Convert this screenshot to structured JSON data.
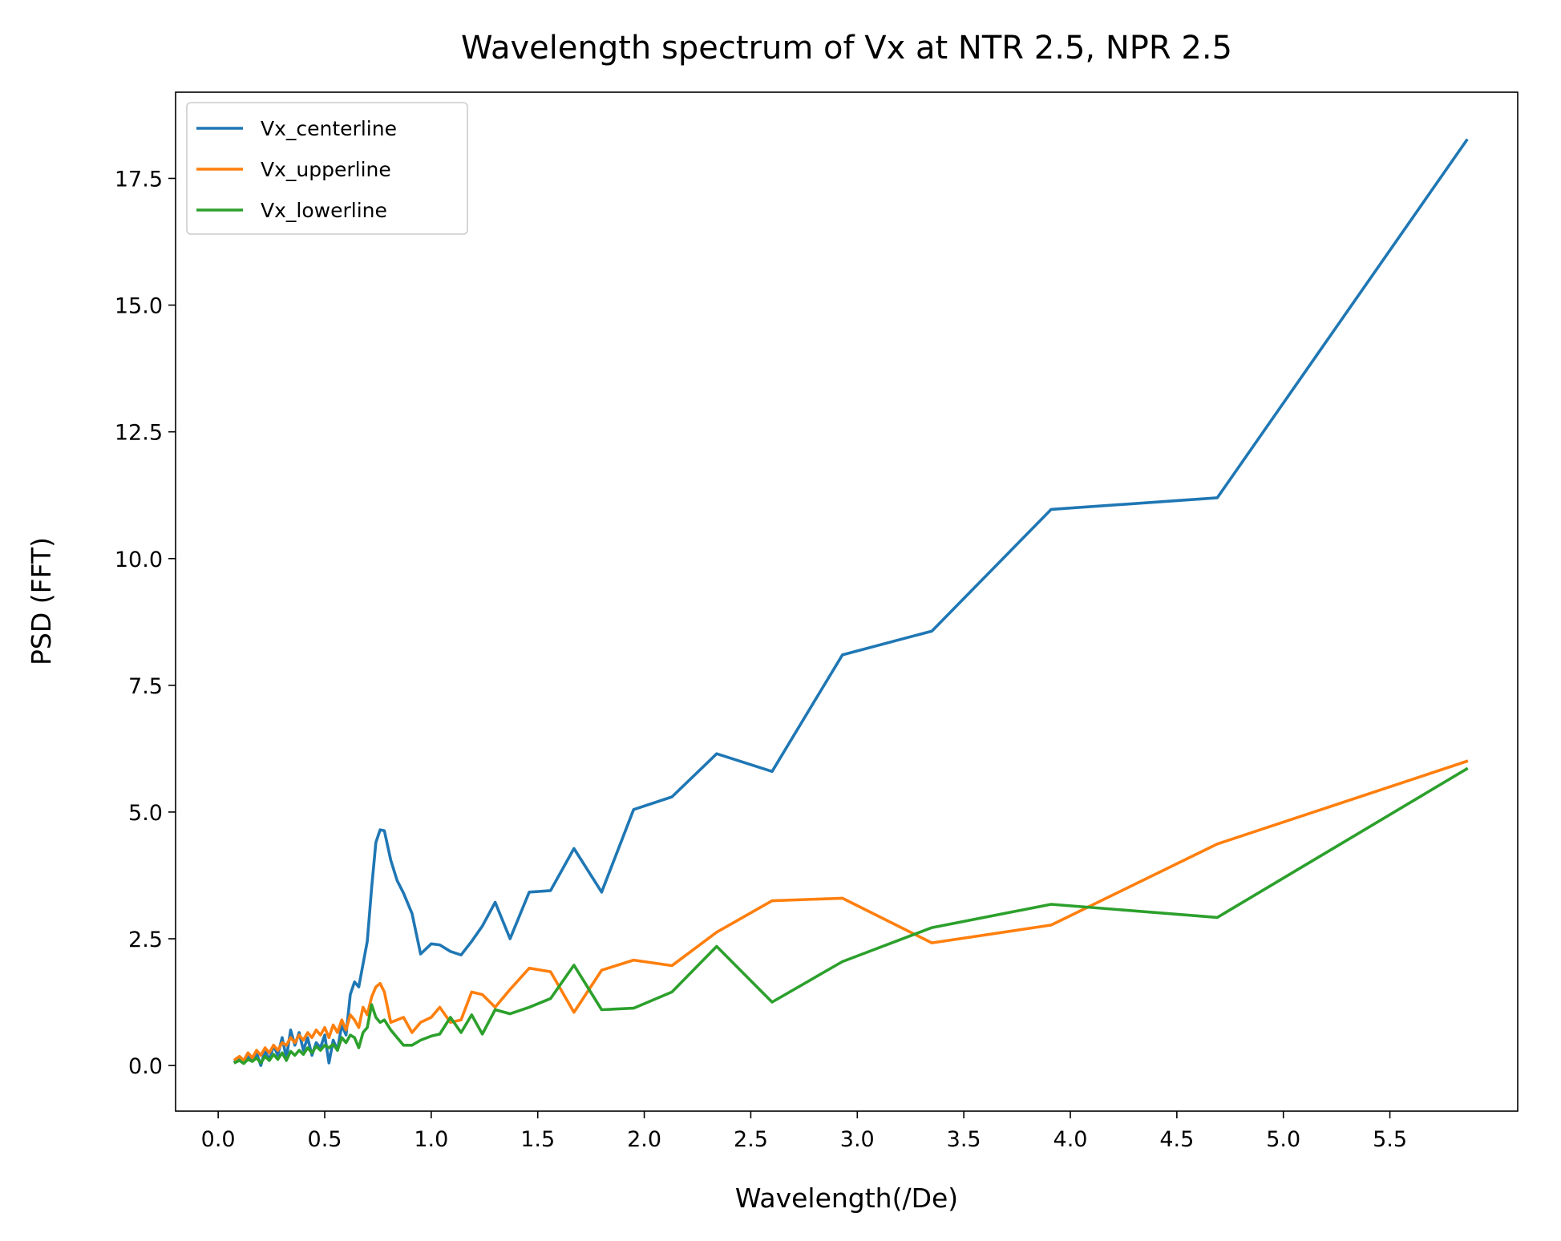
{
  "chart_data": {
    "type": "line",
    "title": "Wavelength spectrum of Vx at NTR 2.5, NPR 2.5",
    "xlabel": "Wavelength(/De)",
    "ylabel": "PSD (FFT)",
    "xlim": [
      -0.2,
      6.1
    ],
    "ylim": [
      -0.9,
      19.2
    ],
    "xticks": [
      0.0,
      0.5,
      1.0,
      1.5,
      2.0,
      2.5,
      3.0,
      3.5,
      4.0,
      4.5,
      5.0,
      5.5
    ],
    "xtick_labels": [
      "0.0",
      "0.5",
      "1.0",
      "1.5",
      "2.0",
      "2.5",
      "3.0",
      "3.5",
      "4.0",
      "4.5",
      "5.0",
      "5.5"
    ],
    "yticks": [
      0.0,
      2.5,
      5.0,
      7.5,
      10.0,
      12.5,
      15.0,
      17.5
    ],
    "ytick_labels": [
      "0.0",
      "2.5",
      "5.0",
      "7.5",
      "10.0",
      "12.5",
      "15.0",
      "17.5"
    ],
    "grid": false,
    "legend_position": "top-left",
    "series": [
      {
        "name": "Vx_centerline",
        "color": "#1f77b4",
        "x": [
          0.08,
          0.1,
          0.12,
          0.14,
          0.16,
          0.18,
          0.2,
          0.22,
          0.24,
          0.26,
          0.28,
          0.3,
          0.32,
          0.34,
          0.36,
          0.38,
          0.4,
          0.42,
          0.44,
          0.46,
          0.48,
          0.5,
          0.52,
          0.54,
          0.56,
          0.58,
          0.6,
          0.62,
          0.64,
          0.66,
          0.68,
          0.7,
          0.72,
          0.74,
          0.76,
          0.78,
          0.81,
          0.84,
          0.87,
          0.91,
          0.95,
          1.0,
          1.04,
          1.09,
          1.14,
          1.19,
          1.24,
          1.3,
          1.37,
          1.46,
          1.56,
          1.67,
          1.8,
          1.95,
          2.13,
          2.34,
          2.6,
          2.93,
          3.35,
          3.91,
          4.69,
          5.86
        ],
        "y": [
          0.08,
          0.15,
          0.05,
          0.2,
          0.1,
          0.25,
          0.0,
          0.3,
          0.1,
          0.4,
          0.2,
          0.55,
          0.15,
          0.7,
          0.4,
          0.65,
          0.3,
          0.55,
          0.2,
          0.45,
          0.35,
          0.6,
          0.05,
          0.5,
          0.3,
          0.8,
          0.6,
          1.4,
          1.65,
          1.55,
          2.0,
          2.45,
          3.5,
          4.4,
          4.65,
          4.63,
          4.05,
          3.65,
          3.4,
          3.0,
          2.2,
          2.4,
          2.38,
          2.25,
          2.18,
          2.45,
          2.75,
          3.22,
          2.5,
          3.42,
          3.45,
          4.28,
          3.42,
          5.05,
          5.3,
          6.15,
          5.8,
          8.1,
          8.57,
          10.97,
          11.2,
          18.25
        ]
      },
      {
        "name": "Vx_upperline",
        "color": "#ff7f0e",
        "x": [
          0.08,
          0.1,
          0.12,
          0.14,
          0.16,
          0.18,
          0.2,
          0.22,
          0.24,
          0.26,
          0.28,
          0.3,
          0.32,
          0.34,
          0.36,
          0.38,
          0.4,
          0.42,
          0.44,
          0.46,
          0.48,
          0.5,
          0.52,
          0.54,
          0.56,
          0.58,
          0.6,
          0.62,
          0.64,
          0.66,
          0.68,
          0.7,
          0.72,
          0.74,
          0.76,
          0.78,
          0.81,
          0.84,
          0.87,
          0.91,
          0.95,
          1.0,
          1.04,
          1.09,
          1.14,
          1.19,
          1.24,
          1.3,
          1.37,
          1.46,
          1.56,
          1.67,
          1.8,
          1.95,
          2.13,
          2.34,
          2.6,
          2.93,
          3.35,
          3.91,
          4.69,
          5.86
        ],
        "y": [
          0.12,
          0.18,
          0.1,
          0.25,
          0.15,
          0.3,
          0.2,
          0.35,
          0.25,
          0.4,
          0.3,
          0.45,
          0.4,
          0.55,
          0.45,
          0.6,
          0.5,
          0.65,
          0.55,
          0.7,
          0.6,
          0.75,
          0.55,
          0.8,
          0.65,
          0.9,
          0.7,
          1.0,
          0.9,
          0.75,
          1.15,
          1.0,
          1.35,
          1.55,
          1.62,
          1.45,
          0.85,
          0.9,
          0.95,
          0.65,
          0.85,
          0.95,
          1.15,
          0.85,
          0.9,
          1.45,
          1.4,
          1.15,
          1.5,
          1.92,
          1.85,
          1.05,
          1.88,
          2.08,
          1.97,
          2.63,
          3.25,
          3.3,
          2.42,
          2.77,
          4.37,
          6.0
        ]
      },
      {
        "name": "Vx_lowerline",
        "color": "#2ca02c",
        "x": [
          0.08,
          0.1,
          0.12,
          0.14,
          0.16,
          0.18,
          0.2,
          0.22,
          0.24,
          0.26,
          0.28,
          0.3,
          0.32,
          0.34,
          0.36,
          0.38,
          0.4,
          0.42,
          0.44,
          0.46,
          0.48,
          0.5,
          0.52,
          0.54,
          0.56,
          0.58,
          0.6,
          0.62,
          0.64,
          0.66,
          0.68,
          0.7,
          0.72,
          0.74,
          0.76,
          0.78,
          0.81,
          0.84,
          0.87,
          0.91,
          0.95,
          1.0,
          1.04,
          1.09,
          1.14,
          1.19,
          1.24,
          1.3,
          1.37,
          1.46,
          1.56,
          1.67,
          1.8,
          1.95,
          2.13,
          2.34,
          2.6,
          2.93,
          3.35,
          3.91,
          4.69,
          5.86
        ],
        "y": [
          0.06,
          0.1,
          0.04,
          0.12,
          0.08,
          0.15,
          0.05,
          0.18,
          0.1,
          0.22,
          0.12,
          0.25,
          0.1,
          0.28,
          0.2,
          0.3,
          0.22,
          0.35,
          0.25,
          0.38,
          0.3,
          0.4,
          0.35,
          0.42,
          0.3,
          0.55,
          0.45,
          0.6,
          0.55,
          0.35,
          0.65,
          0.75,
          1.2,
          0.95,
          0.85,
          0.9,
          0.7,
          0.55,
          0.4,
          0.4,
          0.5,
          0.58,
          0.62,
          0.95,
          0.65,
          1.0,
          0.62,
          1.1,
          1.02,
          1.15,
          1.32,
          1.98,
          1.1,
          1.13,
          1.45,
          2.35,
          1.25,
          2.05,
          2.72,
          3.18,
          2.92,
          5.85
        ]
      }
    ]
  }
}
